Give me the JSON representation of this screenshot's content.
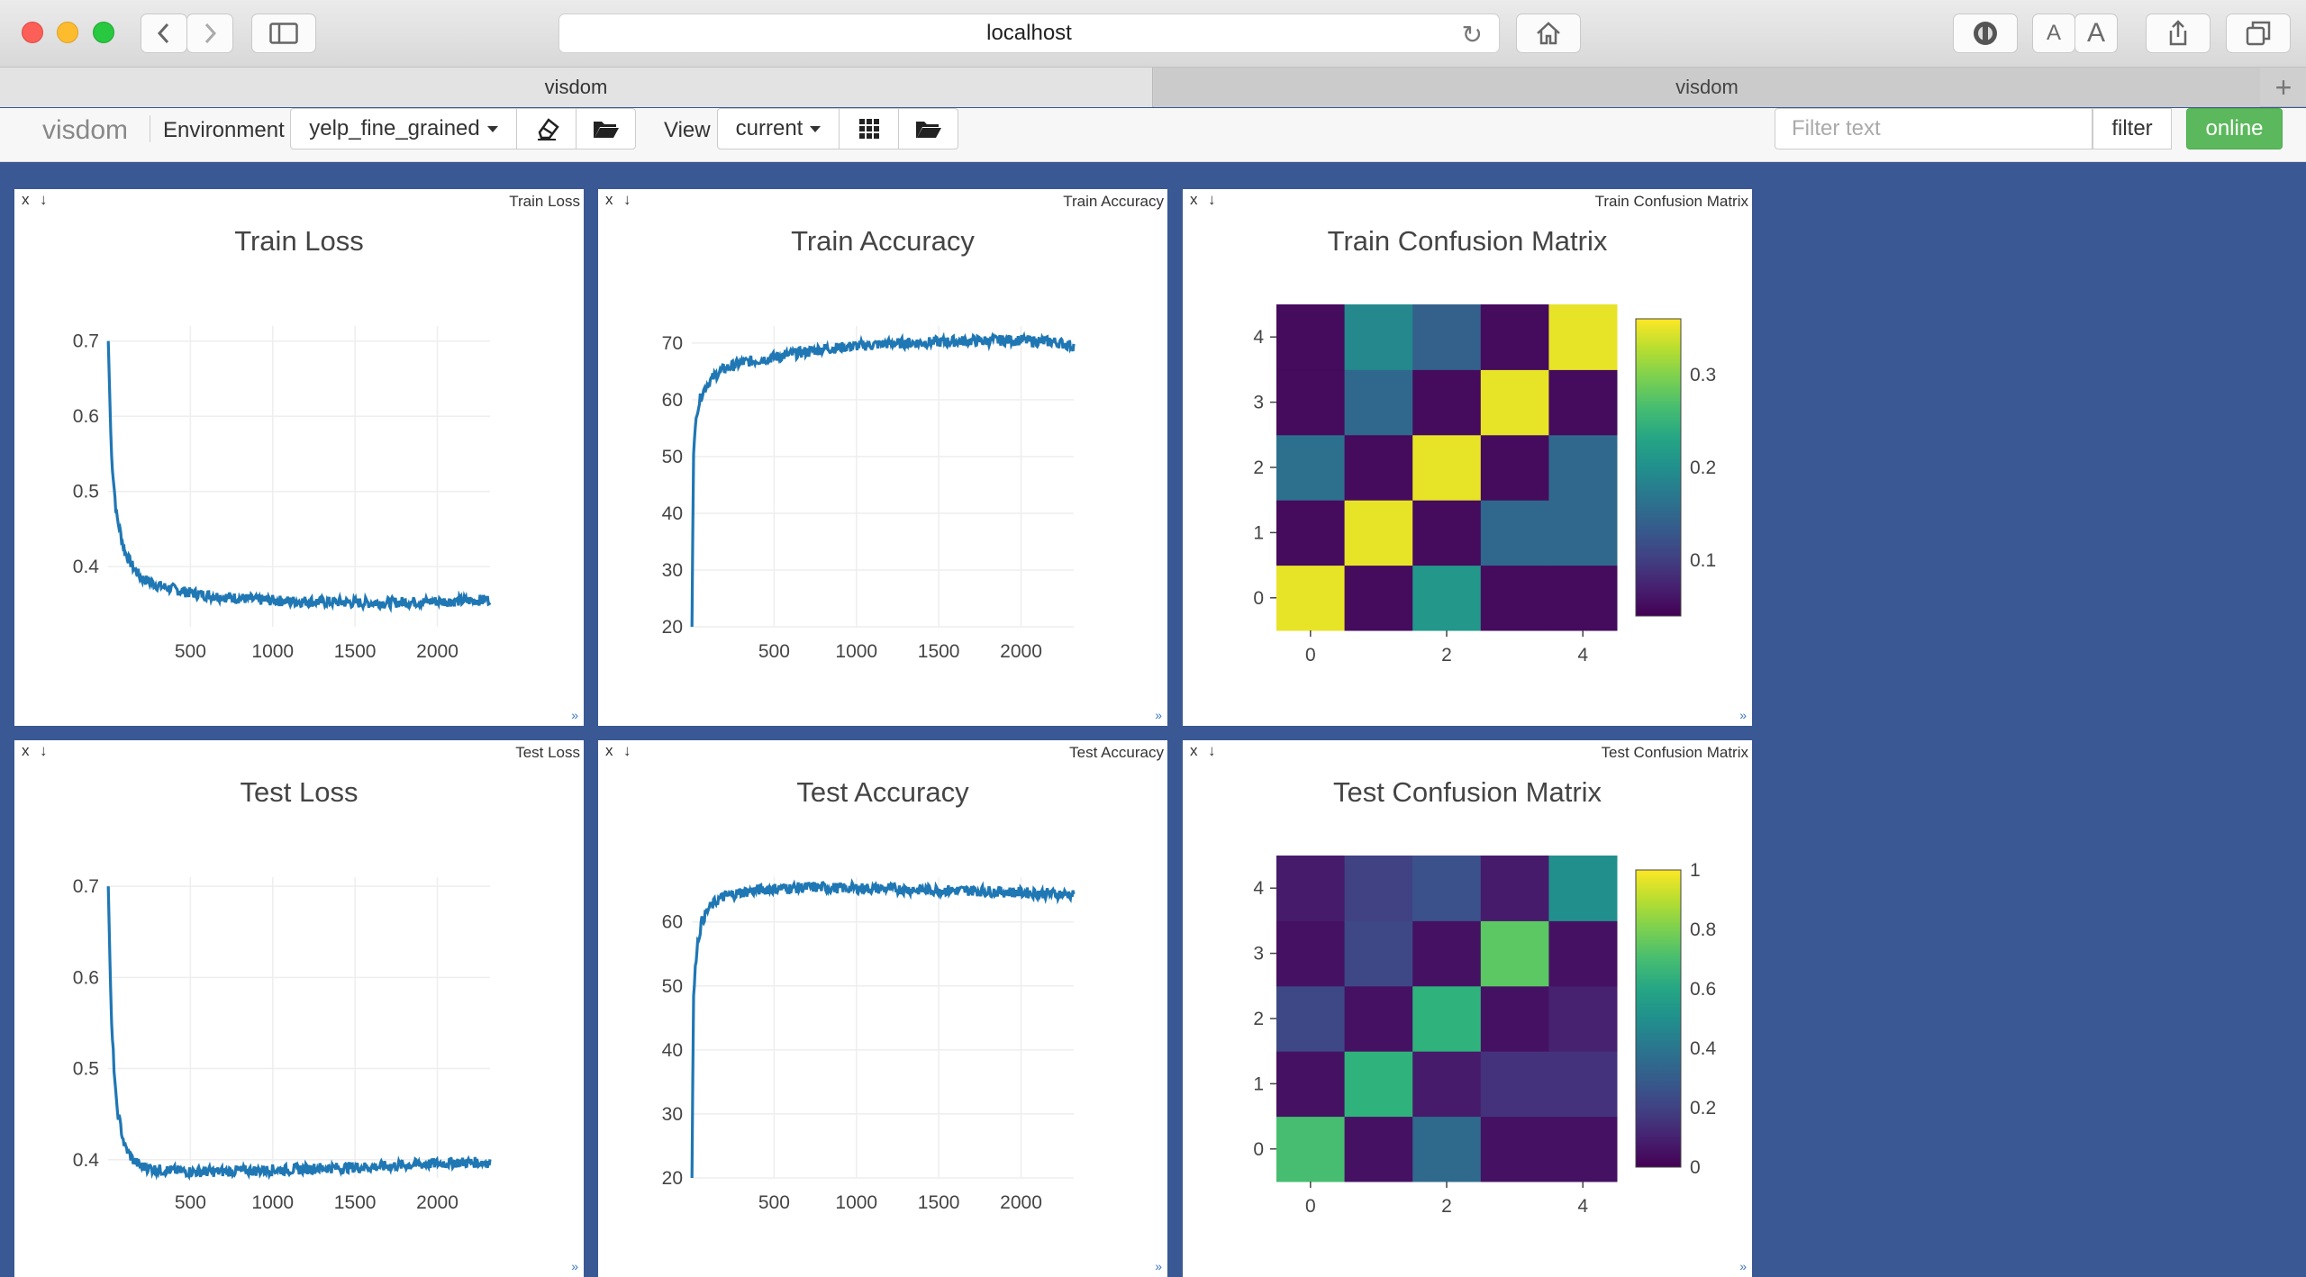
{
  "browser": {
    "url": "localhost",
    "tabs": [
      {
        "label": "visdom",
        "active": true
      },
      {
        "label": "visdom",
        "active": false
      }
    ],
    "new_tab_symbol": "+",
    "reader_small": "A",
    "reader_large": "A"
  },
  "toolbar": {
    "brand": "visdom",
    "environment_label": "Environment",
    "environment_value": "yelp_fine_grained",
    "view_label": "View",
    "view_value": "current",
    "filter_placeholder": "Filter text",
    "filter_button": "filter",
    "status_button": "online"
  },
  "panes": [
    {
      "id": "train-loss",
      "label": "Train Loss",
      "title": "Train Loss",
      "close": "x",
      "download": "↓",
      "resize": "»"
    },
    {
      "id": "train-accuracy",
      "label": "Train Accuracy",
      "title": "Train Accuracy",
      "close": "x",
      "download": "↓",
      "resize": "»"
    },
    {
      "id": "train-confusion",
      "label": "Train Confusion Matrix",
      "title": "Train Confusion Matrix",
      "close": "x",
      "download": "↓",
      "resize": "»"
    },
    {
      "id": "test-loss",
      "label": "Test Loss",
      "title": "Test Loss",
      "close": "x",
      "download": "↓",
      "resize": "»"
    },
    {
      "id": "test-accuracy",
      "label": "Test Accuracy",
      "title": "Test Accuracy",
      "close": "x",
      "download": "↓",
      "resize": "»"
    },
    {
      "id": "test-confusion",
      "label": "Test Confusion Matrix",
      "title": "Test Confusion Matrix",
      "close": "x",
      "download": "↓",
      "resize": "»"
    }
  ],
  "chart_data": [
    {
      "type": "line",
      "title": "Train Loss",
      "xticks": [
        500,
        1000,
        1500,
        2000
      ],
      "yticks": [
        0.4,
        0.5,
        0.6,
        0.7
      ],
      "xlim": [
        0,
        2320
      ],
      "ylim": [
        0.32,
        0.72
      ],
      "series": [
        {
          "x": [
            1,
            20,
            50,
            100,
            150,
            200,
            300,
            400,
            500,
            600,
            700,
            800,
            900,
            1000,
            1100,
            1200,
            1300,
            1400,
            1500,
            1600,
            1700,
            1800,
            1900,
            2000,
            2100,
            2200,
            2320
          ],
          "values": [
            0.7,
            0.55,
            0.47,
            0.42,
            0.4,
            0.385,
            0.375,
            0.37,
            0.365,
            0.362,
            0.36,
            0.358,
            0.356,
            0.355,
            0.354,
            0.354,
            0.353,
            0.353,
            0.352,
            0.352,
            0.352,
            0.353,
            0.353,
            0.354,
            0.354,
            0.355,
            0.356
          ]
        }
      ],
      "color": "#1f77b4"
    },
    {
      "type": "line",
      "title": "Train Accuracy",
      "xticks": [
        500,
        1000,
        1500,
        2000
      ],
      "yticks": [
        20,
        30,
        40,
        50,
        60,
        70
      ],
      "xlim": [
        0,
        2320
      ],
      "ylim": [
        20,
        73
      ],
      "series": [
        {
          "x": [
            1,
            10,
            30,
            60,
            100,
            150,
            200,
            300,
            400,
            500,
            600,
            700,
            800,
            900,
            1000,
            1100,
            1200,
            1300,
            1400,
            1500,
            1600,
            1700,
            1800,
            1900,
            2000,
            2100,
            2200,
            2320
          ],
          "values": [
            20,
            50,
            58,
            61,
            63,
            64.5,
            65.5,
            66.5,
            67,
            67.5,
            68,
            68.5,
            69,
            69.2,
            69.5,
            69.7,
            69.9,
            70,
            70.1,
            70.2,
            70.3,
            70.4,
            70.4,
            70.5,
            70.5,
            70.3,
            70.2,
            69.5
          ]
        }
      ],
      "color": "#1f77b4"
    },
    {
      "type": "heatmap",
      "title": "Train Confusion Matrix",
      "xticks": [
        0,
        2,
        4
      ],
      "yticks": [
        0,
        1,
        2,
        3,
        4
      ],
      "colorbar_ticks": [
        0.1,
        0.2,
        0.3
      ],
      "zlim": [
        0.04,
        0.36
      ],
      "z": [
        [
          0.35,
          0.05,
          0.21,
          0.05,
          0.05
        ],
        [
          0.05,
          0.35,
          0.05,
          0.15,
          0.15
        ],
        [
          0.16,
          0.05,
          0.35,
          0.05,
          0.15
        ],
        [
          0.05,
          0.15,
          0.05,
          0.35,
          0.05
        ],
        [
          0.05,
          0.19,
          0.14,
          0.05,
          0.35
        ]
      ]
    },
    {
      "type": "line",
      "title": "Test Loss",
      "xticks": [
        500,
        1000,
        1500,
        2000
      ],
      "yticks": [
        0.4,
        0.5,
        0.6,
        0.7
      ],
      "xlim": [
        0,
        2320
      ],
      "ylim": [
        0.38,
        0.71
      ],
      "series": [
        {
          "x": [
            1,
            20,
            50,
            100,
            150,
            200,
            300,
            400,
            500,
            600,
            700,
            800,
            900,
            1000,
            1100,
            1200,
            1300,
            1400,
            1500,
            1600,
            1700,
            1800,
            1900,
            2000,
            2100,
            2200,
            2320
          ],
          "values": [
            0.7,
            0.55,
            0.46,
            0.415,
            0.4,
            0.393,
            0.389,
            0.388,
            0.387,
            0.387,
            0.387,
            0.388,
            0.388,
            0.389,
            0.389,
            0.39,
            0.391,
            0.391,
            0.392,
            0.392,
            0.393,
            0.394,
            0.395,
            0.396,
            0.397,
            0.397,
            0.397
          ]
        }
      ],
      "color": "#1f77b4"
    },
    {
      "type": "line",
      "title": "Test Accuracy",
      "xticks": [
        500,
        1000,
        1500,
        2000
      ],
      "yticks": [
        20,
        30,
        40,
        50,
        60
      ],
      "xlim": [
        0,
        2320
      ],
      "ylim": [
        20,
        67
      ],
      "series": [
        {
          "x": [
            1,
            10,
            30,
            60,
            100,
            150,
            200,
            300,
            400,
            500,
            600,
            700,
            800,
            900,
            1000,
            1100,
            1200,
            1300,
            1400,
            1500,
            1600,
            1700,
            1800,
            1900,
            2000,
            2100,
            2200,
            2320
          ],
          "values": [
            20,
            48,
            56,
            60,
            62,
            63.3,
            64,
            64.6,
            65,
            65.2,
            65.3,
            65.4,
            65.4,
            65.3,
            65.3,
            65.2,
            65.2,
            65.1,
            65.0,
            65.0,
            64.9,
            64.9,
            64.8,
            64.7,
            64.6,
            64.5,
            64.4,
            64.3
          ]
        }
      ],
      "color": "#1f77b4"
    },
    {
      "type": "heatmap",
      "title": "Test Confusion Matrix",
      "xticks": [
        0,
        2,
        4
      ],
      "yticks": [
        0,
        1,
        2,
        3,
        4
      ],
      "colorbar_ticks": [
        0,
        0.2,
        0.4,
        0.6,
        0.8,
        1
      ],
      "zlim": [
        0,
        1
      ],
      "z": [
        [
          0.7,
          0.05,
          0.35,
          0.05,
          0.05
        ],
        [
          0.05,
          0.65,
          0.08,
          0.15,
          0.15
        ],
        [
          0.22,
          0.05,
          0.65,
          0.05,
          0.1
        ],
        [
          0.05,
          0.22,
          0.05,
          0.75,
          0.05
        ],
        [
          0.08,
          0.2,
          0.25,
          0.08,
          0.5
        ]
      ]
    }
  ]
}
